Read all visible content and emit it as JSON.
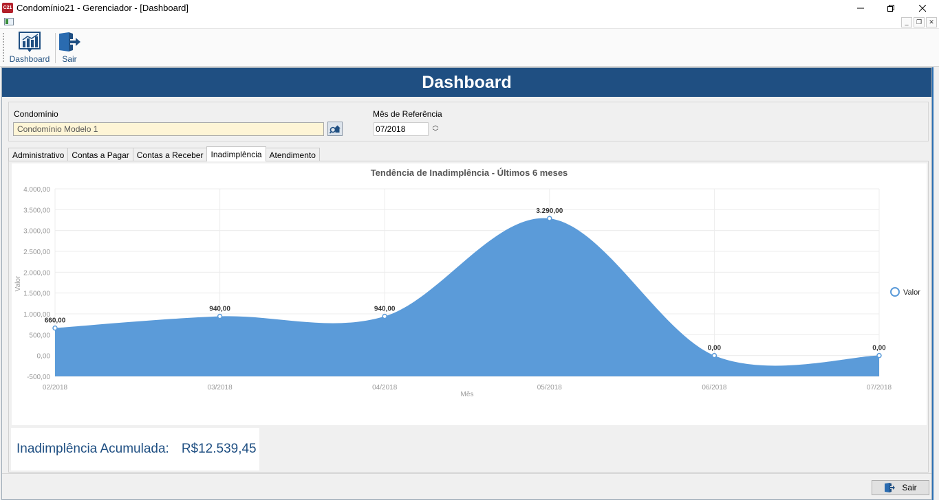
{
  "window": {
    "app_icon_text": "C21",
    "title": "Condomínio21 - Gerenciador - [Dashboard]"
  },
  "toolbar": {
    "dashboard_label": "Dashboard",
    "sair_label": "Sair"
  },
  "header": {
    "title": "Dashboard"
  },
  "filters": {
    "condominio_label": "Condomínio",
    "condominio_value": "Condomínio Modelo 1",
    "mes_label": "Mês de Referência",
    "mes_value": "07/2018"
  },
  "tabs": [
    {
      "label": "Administrativo",
      "active": false
    },
    {
      "label": "Contas a Pagar",
      "active": false
    },
    {
      "label": "Contas a Receber",
      "active": false
    },
    {
      "label": "Inadimplência",
      "active": true
    },
    {
      "label": "Atendimento",
      "active": false
    }
  ],
  "summary": {
    "label": "Inadimplência Acumulada:",
    "value": "R$12.539,45"
  },
  "footer": {
    "sair_label": "Sair"
  },
  "colors": {
    "header": "#1f4f82",
    "area_fill": "#5b9bd9",
    "accent_text": "#1f4f82"
  },
  "chart_data": {
    "type": "area",
    "title": "Tendência de Inadimplência - Últimos 6 meses",
    "xlabel": "Mês",
    "ylabel": "Valor",
    "categories": [
      "02/2018",
      "03/2018",
      "04/2018",
      "05/2018",
      "06/2018",
      "07/2018"
    ],
    "series": [
      {
        "name": "Valor",
        "values": [
          660,
          940,
          940,
          3290,
          0,
          0
        ]
      }
    ],
    "data_labels": [
      "660,00",
      "940,00",
      "940,00",
      "3.290,00",
      "0,00",
      "0,00"
    ],
    "ylim": [
      -500,
      4000
    ],
    "yticks": [
      4000,
      3500,
      3000,
      2500,
      2000,
      1500,
      1000,
      500,
      0,
      -500
    ],
    "ytick_labels": [
      "4.000,00",
      "3.500,00",
      "3.000,00",
      "2.500,00",
      "2.000,00",
      "1.500,00",
      "1.000,00",
      "500,00",
      "0,00",
      "-500,00"
    ],
    "grid": true,
    "smooth": true,
    "legend": "right"
  }
}
